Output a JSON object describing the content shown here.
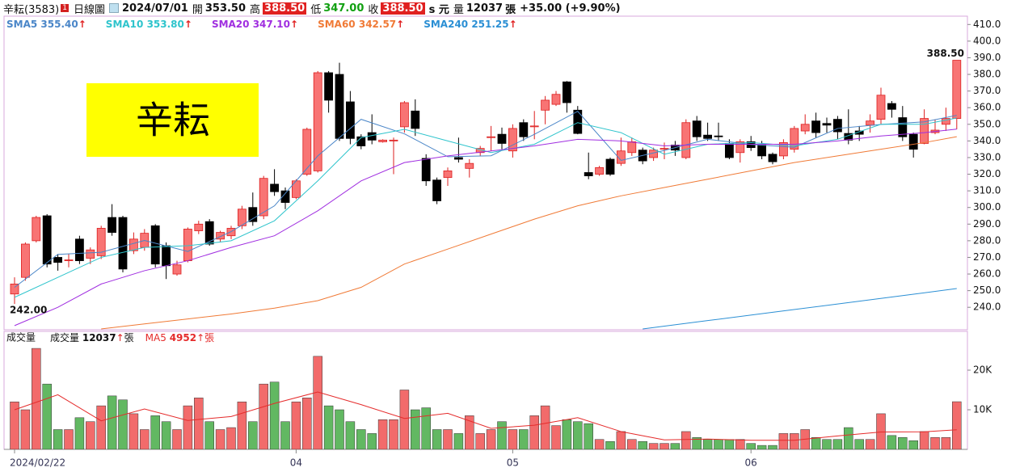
{
  "header": {
    "name": "辛耘(3583)",
    "badge": "1",
    "period": "日線圖",
    "date": "2024/07/01",
    "open_label": "開",
    "open": "353.50",
    "high_label": "高",
    "high": "388.50",
    "low_label": "低",
    "low": "347.00",
    "close_label": "收",
    "close": "388.50",
    "unit": "s 元",
    "volume_label": "量",
    "volume": "12037",
    "volume_unit": "張",
    "change": "+35.00 (+9.90%)"
  },
  "chart_data": {
    "type": "candlestick",
    "title": "辛耘",
    "categories": [
      "2024/02/22",
      null,
      null,
      null,
      null,
      null,
      null,
      null,
      null,
      null,
      null,
      null,
      null,
      null,
      null,
      null,
      null,
      null,
      null,
      null,
      null,
      null,
      null,
      null,
      null,
      null,
      "04",
      null,
      null,
      null,
      null,
      null,
      null,
      null,
      null,
      null,
      null,
      null,
      null,
      null,
      null,
      null,
      null,
      null,
      null,
      null,
      "05",
      null,
      null,
      null,
      null,
      null,
      null,
      null,
      null,
      null,
      null,
      null,
      null,
      null,
      null,
      null,
      null,
      null,
      null,
      null,
      null,
      null,
      "06",
      null,
      null,
      null,
      null,
      null,
      null,
      null,
      null,
      null,
      null,
      null,
      null,
      null,
      null,
      null,
      null,
      null,
      null,
      null
    ],
    "open": [
      248,
      258,
      280,
      295,
      270,
      268,
      281,
      269.5,
      271,
      294,
      294,
      274,
      276,
      289,
      277,
      260,
      268,
      286,
      291.5,
      281,
      283,
      289,
      300,
      295,
      314,
      310,
      306,
      320,
      322,
      381,
      380,
      363.5,
      342.5,
      345,
      339.5,
      340,
      348.5,
      358,
      329.5,
      316.5,
      318,
      330,
      323.5,
      333,
      342,
      344,
      334,
      351,
      348.5,
      358.5,
      362,
      375.5,
      358.5,
      321,
      320,
      329,
      326.5,
      333,
      334.5,
      330,
      335,
      337.5,
      330,
      352,
      343.5,
      343,
      338.5,
      333,
      339.5,
      337.5,
      332,
      331,
      335,
      346,
      352,
      350.5,
      353,
      344.5,
      346,
      349.5,
      353,
      362.5,
      354,
      344,
      338.5,
      345,
      350,
      353.5
    ],
    "high": [
      258,
      279,
      295,
      296,
      272,
      272,
      283,
      276,
      289,
      302,
      295,
      285,
      287,
      290,
      279,
      268,
      288,
      292,
      293,
      286,
      289,
      301,
      309,
      319,
      323,
      312,
      317,
      348,
      382,
      382,
      387,
      370,
      344,
      356,
      341,
      342,
      364,
      365,
      332,
      318,
      324,
      342,
      329,
      337,
      349,
      348,
      350,
      353,
      358,
      367,
      370,
      376,
      361,
      333,
      325,
      330,
      342,
      342,
      336,
      336,
      339,
      340,
      353,
      355,
      351,
      351,
      341,
      341,
      343,
      340,
      333,
      341,
      349,
      356,
      357,
      354,
      355,
      359,
      349,
      356,
      372,
      364,
      361,
      345,
      359,
      353,
      360,
      388.5
    ],
    "low": [
      242,
      256,
      279,
      264,
      262,
      264,
      266,
      266,
      269,
      283,
      261,
      272,
      274,
      264,
      257,
      259,
      267,
      284,
      277,
      279,
      281,
      287,
      289,
      293,
      307,
      299,
      305,
      319,
      321,
      357,
      340,
      338,
      335,
      338,
      339,
      320,
      345,
      343,
      313,
      302,
      313,
      327,
      318,
      331,
      334,
      335,
      330,
      340,
      341,
      350,
      361,
      357,
      344,
      317,
      319,
      319,
      325,
      331,
      326,
      328,
      329,
      331,
      329,
      340,
      340,
      340,
      329,
      327,
      334,
      329,
      326,
      329,
      333,
      344,
      342,
      345,
      341,
      338,
      340,
      345,
      350,
      354,
      340,
      330,
      338,
      344,
      346,
      347
    ],
    "close": [
      254,
      278,
      294,
      266,
      267,
      268.5,
      268,
      274.5,
      287.5,
      285,
      263,
      281,
      284.5,
      266,
      265,
      265.5,
      287,
      290,
      278,
      285,
      287.5,
      299,
      291.5,
      317.5,
      309.5,
      303,
      316,
      347,
      381,
      364.5,
      341.5,
      341.5,
      337,
      340.5,
      340.5,
      340.5,
      363,
      347.5,
      316,
      304,
      322,
      329,
      326.5,
      335.5,
      342.5,
      338.5,
      347.5,
      342.5,
      349,
      364.5,
      368,
      363,
      344.5,
      319,
      324,
      320,
      334,
      339.5,
      328,
      334.5,
      335.5,
      334.5,
      351,
      342.5,
      341.5,
      342.5,
      330,
      339.5,
      336,
      331,
      327.5,
      339,
      347.5,
      350,
      345,
      349.5,
      345.5,
      340.5,
      344,
      352,
      367.5,
      359,
      342.5,
      335,
      353.5,
      346.5,
      353.5,
      388.5
    ],
    "up_color": "#f87474",
    "up_border": "#dd1f1f",
    "down_color": "#000000",
    "ylim": [
      226.5,
      415
    ],
    "yticks": [
      {
        "value": 240,
        "label": "240.0"
      },
      {
        "value": 250,
        "label": "250.0"
      },
      {
        "value": 260,
        "label": "260.0"
      },
      {
        "value": 270,
        "label": "270.0"
      },
      {
        "value": 280,
        "label": "280.0"
      },
      {
        "value": 290,
        "label": "290.0"
      },
      {
        "value": 300,
        "label": "300.0"
      },
      {
        "value": 310,
        "label": "310.0"
      },
      {
        "value": 320,
        "label": "320.0"
      },
      {
        "value": 330,
        "label": "330.0"
      },
      {
        "value": 340,
        "label": "340.0"
      },
      {
        "value": 350,
        "label": "350.0"
      },
      {
        "value": 360,
        "label": "360.0"
      },
      {
        "value": 370,
        "label": "370.0"
      },
      {
        "value": 380,
        "label": "380.0"
      },
      {
        "value": 390,
        "label": "390.0"
      },
      {
        "value": 400,
        "label": "400.0"
      },
      {
        "value": 410,
        "label": "410.0"
      }
    ],
    "annotations": [
      {
        "label": "388.50",
        "value": 388.5,
        "x": 87
      },
      {
        "label": "242.00",
        "value": 242,
        "x": 0
      }
    ],
    "arrow": "↑",
    "series": [
      {
        "name": "SMA5",
        "legend_value": "355.40",
        "color": "#4a86c8",
        "x": [
          0,
          4,
          8,
          12,
          16,
          20,
          24,
          28,
          32,
          36,
          40,
          44,
          48,
          52,
          56,
          60,
          64,
          68,
          72,
          76,
          80,
          84,
          87
        ],
        "values": [
          252,
          271.8,
          273.1,
          280.2,
          273.6,
          285.5,
          301,
          331,
          353,
          344.3,
          330.5,
          331.1,
          344,
          357.8,
          328.3,
          334.3,
          341,
          337.9,
          336.2,
          347.5,
          349.9,
          351.5,
          355.4
        ]
      },
      {
        "name": "SMA10",
        "legend_value": "353.80",
        "color": "#2ec4cc",
        "x": [
          0,
          4,
          8,
          12,
          16,
          20,
          24,
          28,
          32,
          36,
          40,
          44,
          48,
          52,
          56,
          60,
          64,
          68,
          72,
          76,
          80,
          84,
          87
        ],
        "values": [
          246,
          258,
          270,
          276,
          277,
          280,
          292,
          316,
          342,
          347,
          340,
          333,
          338,
          351,
          345,
          332,
          338,
          339,
          337,
          341,
          350,
          350,
          353.8
        ]
      },
      {
        "name": "SMA20",
        "legend_value": "347.10",
        "color": "#a02ee0",
        "x": [
          0,
          4,
          8,
          12,
          16,
          20,
          24,
          28,
          32,
          36,
          40,
          44,
          48,
          52,
          56,
          60,
          64,
          68,
          72,
          76,
          80,
          84,
          87
        ],
        "values": [
          229,
          240,
          254,
          262,
          268,
          276,
          283,
          298,
          316,
          327,
          331,
          334,
          337,
          341,
          340,
          337,
          338,
          338,
          338,
          340,
          343,
          345,
          347.1
        ]
      },
      {
        "name": "SMA60",
        "legend_value": "342.57",
        "color": "#f07a36",
        "x": [
          8,
          12,
          16,
          20,
          24,
          28,
          32,
          36,
          40,
          44,
          48,
          52,
          56,
          60,
          64,
          68,
          72,
          76,
          80,
          84,
          87
        ],
        "values": [
          227,
          230,
          233,
          236,
          239.5,
          244,
          252,
          266,
          275,
          284,
          293,
          301,
          307,
          312,
          317,
          322,
          327,
          331,
          335,
          339,
          342.57
        ]
      },
      {
        "name": "SMA240",
        "legend_value": "251.25",
        "color": "#2b8fd4",
        "x": [
          58,
          64,
          70,
          76,
          82,
          87
        ],
        "values": [
          227,
          232,
          237,
          242,
          247,
          251.25
        ]
      }
    ],
    "volume": {
      "title": "成交量",
      "name": "成交量",
      "legend_value": "12037",
      "unit": "張",
      "up_color": "#f26b6b",
      "down_color": "#62b862",
      "values": [
        12000,
        10000,
        25500,
        16500,
        5000,
        5000,
        8000,
        7000,
        11000,
        13500,
        12500,
        9000,
        5000,
        8500,
        7000,
        5000,
        11000,
        13000,
        7000,
        5000,
        5500,
        12000,
        7000,
        16500,
        17000,
        7000,
        12000,
        13000,
        23500,
        11000,
        10000,
        7000,
        5000,
        4000,
        7500,
        7500,
        15000,
        10000,
        10500,
        5000,
        5000,
        4000,
        8500,
        4000,
        5000,
        7000,
        5000,
        5000,
        8500,
        11000,
        6000,
        7500,
        7000,
        6500,
        2500,
        2000,
        4500,
        2500,
        2000,
        1500,
        1500,
        1500,
        4500,
        3000,
        2500,
        2500,
        2500,
        2500,
        1500,
        1000,
        1000,
        4000,
        4000,
        5000,
        3000,
        2500,
        2500,
        5500,
        2500,
        2500,
        9000,
        3500,
        3000,
        2200,
        4500,
        3000,
        3000,
        12037
      ],
      "ylim": [
        0,
        29800
      ],
      "yticks": [
        {
          "value": 10000,
          "label": "10K"
        },
        {
          "value": 20000,
          "label": "20K"
        }
      ],
      "ma": {
        "name": "MA5",
        "legend_value": "4952",
        "color": "#e52b2b",
        "x": [
          0,
          4,
          8,
          12,
          16,
          20,
          24,
          28,
          32,
          36,
          40,
          44,
          48,
          52,
          56,
          60,
          64,
          68,
          72,
          76,
          80,
          84,
          87
        ],
        "values": [
          10000,
          13800,
          7200,
          10200,
          7300,
          8300,
          11600,
          14500,
          11300,
          7800,
          9100,
          5300,
          6100,
          8000,
          4500,
          2400,
          2600,
          2300,
          2300,
          3400,
          4400,
          4440,
          4952
        ]
      }
    }
  }
}
